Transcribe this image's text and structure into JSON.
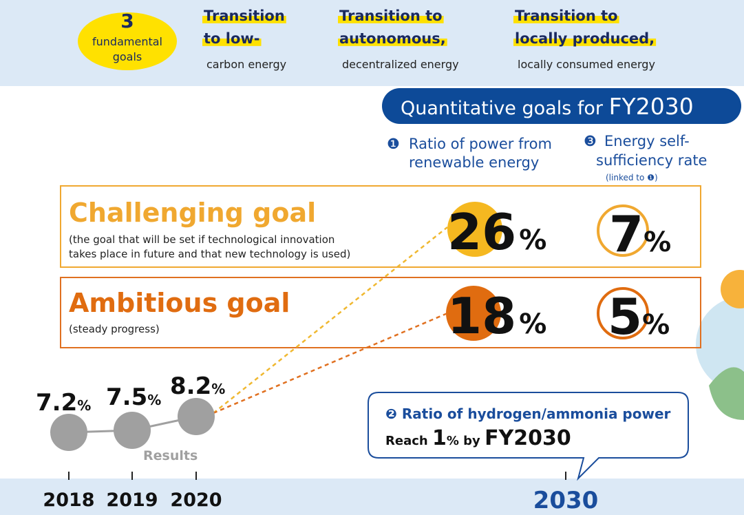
{
  "header": {
    "badge": {
      "number": "3",
      "line1": "fundamental",
      "line2": "goals"
    },
    "goals": [
      {
        "title": [
          "Transition",
          "to low-"
        ],
        "subtitle": "carbon energy"
      },
      {
        "title": [
          "Transition to",
          "autonomous,"
        ],
        "subtitle": "decentralized energy"
      },
      {
        "title": [
          "Transition to",
          "locally produced,"
        ],
        "subtitle": "locally consumed energy"
      }
    ]
  },
  "banner": {
    "text": "Quantitative goals for",
    "year": "FY2030"
  },
  "columns": [
    {
      "marker": "❶",
      "label": [
        "Ratio of power from",
        "renewable energy"
      ]
    },
    {
      "marker": "❸",
      "label": [
        "Energy self-",
        "sufficiency rate"
      ],
      "note": {
        "open": "(linked to",
        "marker": "❶",
        "close": ")"
      }
    }
  ],
  "rows": [
    {
      "title": "Challenging goal",
      "description": [
        "(the goal that will be set if technological innovation",
        "takes place in future and that new technology is used)"
      ],
      "renewable": 26,
      "self_sufficiency": 7
    },
    {
      "title": "Ambitious goal",
      "description": [
        "(steady progress)"
      ],
      "renewable": 18,
      "self_sufficiency": 5
    }
  ],
  "unit": "%",
  "results": {
    "label": "Results",
    "values": [
      7.2,
      7.5,
      8.2
    ]
  },
  "callout": {
    "marker": "❷",
    "title": "Ratio of hydrogen/ammonia power",
    "prefix": "Reach",
    "value": 1,
    "middle": "% by",
    "year": "FY2030"
  },
  "years": [
    "2018",
    "2019",
    "2020",
    "2030"
  ]
}
